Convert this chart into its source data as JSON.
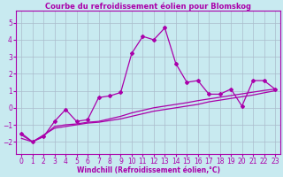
{
  "title": "Courbe du refroidissement éolien pour Blomskog",
  "xlabel": "Windchill (Refroidissement éolien,°C)",
  "xlim": [
    -0.5,
    23.5
  ],
  "ylim": [
    -2.7,
    5.7
  ],
  "xticks": [
    0,
    1,
    2,
    3,
    4,
    5,
    6,
    7,
    8,
    9,
    10,
    11,
    12,
    13,
    14,
    15,
    16,
    17,
    18,
    19,
    20,
    21,
    22,
    23
  ],
  "yticks": [
    -2,
    -1,
    0,
    1,
    2,
    3,
    4,
    5
  ],
  "bg_color": "#c8eaf0",
  "line_color": "#aa00aa",
  "grid_color": "#aabbcc",
  "series1_x": [
    0,
    1,
    2,
    3,
    4,
    5,
    6,
    7,
    8,
    9,
    10,
    11,
    12,
    13,
    14,
    15,
    16,
    17,
    18,
    19,
    20,
    21,
    22,
    23
  ],
  "series1_y": [
    -1.5,
    -2.0,
    -1.7,
    -0.8,
    -0.1,
    -0.8,
    -0.7,
    0.6,
    0.7,
    0.9,
    3.2,
    4.2,
    4.0,
    4.7,
    2.6,
    1.5,
    1.6,
    0.8,
    0.8,
    1.1,
    0.1,
    1.6,
    1.6,
    1.1
  ],
  "series2_x": [
    0,
    1,
    2,
    3,
    4,
    5,
    6,
    7,
    8,
    9,
    10,
    11,
    12,
    13,
    14,
    15,
    16,
    17,
    18,
    19,
    20,
    21,
    22,
    23
  ],
  "series2_y": [
    -1.8,
    -2.0,
    -1.6,
    -1.2,
    -1.1,
    -1.0,
    -0.9,
    -0.85,
    -0.75,
    -0.65,
    -0.5,
    -0.35,
    -0.2,
    -0.1,
    0.0,
    0.1,
    0.2,
    0.35,
    0.45,
    0.55,
    0.65,
    0.75,
    0.88,
    1.0
  ],
  "series3_x": [
    0,
    1,
    2,
    3,
    4,
    5,
    6,
    7,
    8,
    9,
    10,
    11,
    12,
    13,
    14,
    15,
    16,
    17,
    18,
    19,
    20,
    21,
    22,
    23
  ],
  "series3_y": [
    -1.6,
    -2.0,
    -1.65,
    -1.1,
    -1.0,
    -0.95,
    -0.85,
    -0.8,
    -0.65,
    -0.5,
    -0.3,
    -0.15,
    0.0,
    0.1,
    0.2,
    0.3,
    0.42,
    0.52,
    0.62,
    0.72,
    0.82,
    0.92,
    1.02,
    1.1
  ],
  "lw": 0.9,
  "ms": 2.0,
  "tick_fontsize": 5.5,
  "xlabel_fontsize": 5.5,
  "title_fontsize": 6.0
}
